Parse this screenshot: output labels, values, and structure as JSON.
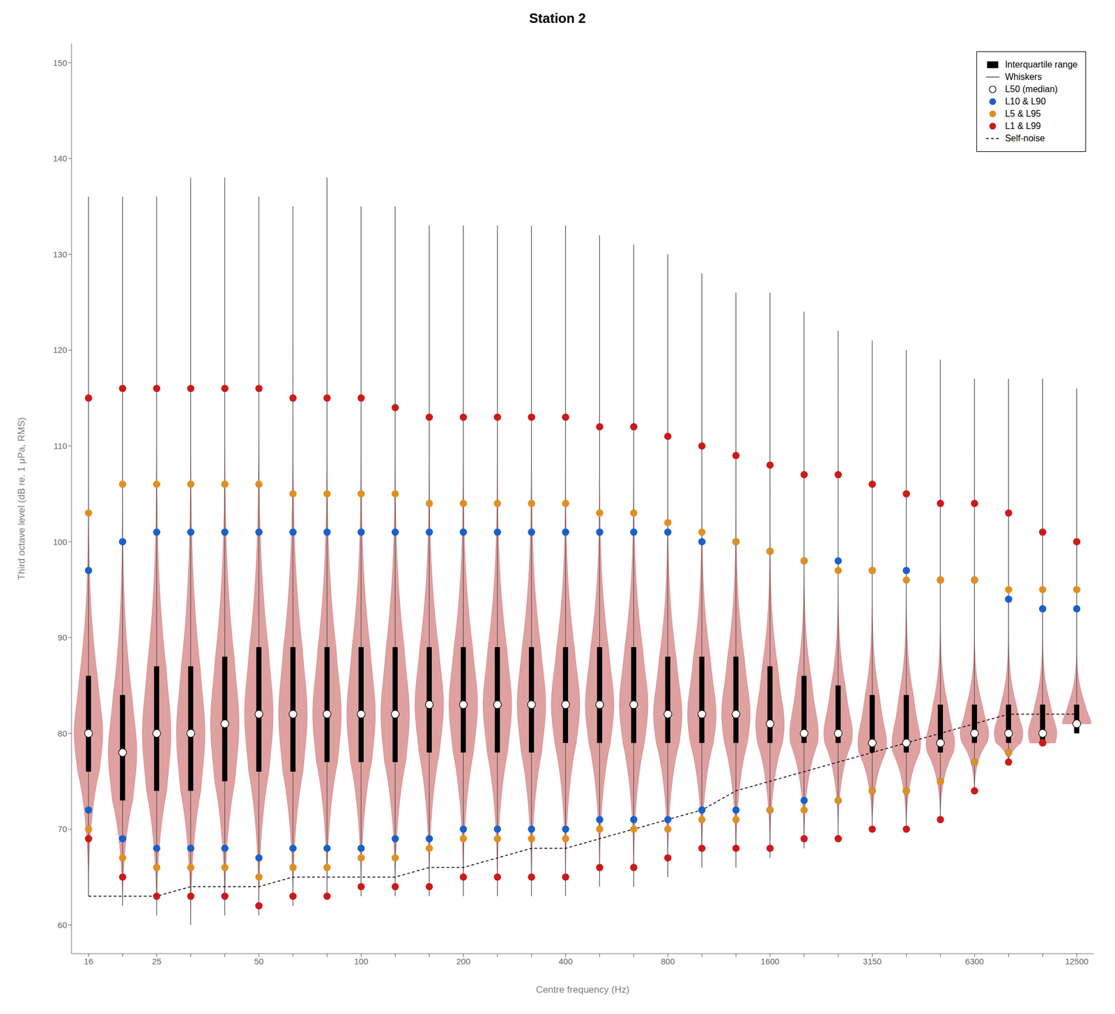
{
  "chart_data": {
    "type": "violin",
    "title": "Station 2",
    "xlabel": "Centre frequency (Hz)",
    "ylabel": "Third octave level (dB re. 1 μPa, RMS)",
    "color": "#d48080",
    "categories": [
      16,
      null,
      25,
      null,
      null,
      50,
      null,
      null,
      100,
      null,
      null,
      200,
      null,
      null,
      400,
      null,
      null,
      800,
      null,
      null,
      1600,
      null,
      null,
      3150,
      null,
      null,
      6300,
      null,
      null,
      12500
    ],
    "series": [
      {
        "name": "Interquartile range",
        "type": "box",
        "color": "#000000",
        "values": [
          [
            76,
            86
          ],
          [
            73,
            84
          ],
          [
            74,
            87
          ],
          [
            74,
            87
          ],
          [
            75,
            88
          ],
          [
            76,
            89
          ],
          [
            76,
            89
          ],
          [
            77,
            89
          ],
          [
            77,
            89
          ],
          [
            77,
            89
          ],
          [
            78,
            89
          ],
          [
            78,
            89
          ],
          [
            78,
            89
          ],
          [
            78,
            89
          ],
          [
            79,
            89
          ],
          [
            79,
            89
          ],
          [
            79,
            89
          ],
          [
            79,
            88
          ],
          [
            79,
            88
          ],
          [
            79,
            88
          ],
          [
            79,
            87
          ],
          [
            79,
            86
          ],
          [
            79,
            85
          ],
          [
            78,
            84
          ],
          [
            78,
            84
          ],
          [
            78,
            83
          ],
          [
            79,
            83
          ],
          [
            79,
            83
          ],
          [
            79,
            83
          ],
          [
            80,
            83
          ]
        ]
      },
      {
        "name": "Whiskers",
        "type": "whisker",
        "color": "#444444",
        "values": [
          [
            63,
            136
          ],
          [
            62,
            136
          ],
          [
            61,
            136
          ],
          [
            60,
            138
          ],
          [
            61,
            138
          ],
          [
            61,
            136
          ],
          [
            62,
            135
          ],
          [
            63,
            138
          ],
          [
            63,
            135
          ],
          [
            63,
            135
          ],
          [
            63,
            133
          ],
          [
            63,
            133
          ],
          [
            63,
            133
          ],
          [
            63,
            133
          ],
          [
            63,
            133
          ],
          [
            64,
            132
          ],
          [
            64,
            131
          ],
          [
            65,
            130
          ],
          [
            66,
            128
          ],
          [
            66,
            126
          ],
          [
            67,
            126
          ],
          [
            68,
            124
          ],
          [
            69,
            122
          ],
          [
            70,
            121
          ],
          [
            70,
            120
          ],
          [
            71,
            119
          ],
          [
            74,
            117
          ],
          [
            77,
            117
          ],
          [
            79,
            117
          ],
          [
            81,
            116
          ]
        ]
      },
      {
        "name": "L50 (median)",
        "type": "scatter",
        "color": "white",
        "values": [
          80,
          78,
          80,
          80,
          81,
          82,
          82,
          82,
          82,
          82,
          83,
          83,
          83,
          83,
          83,
          83,
          83,
          82,
          82,
          82,
          81,
          80,
          80,
          79,
          79,
          79,
          80,
          80,
          80,
          81
        ]
      },
      {
        "name": "L10 & L90",
        "type": "scatter",
        "color": "#1a5fcc",
        "values": [
          [
            97,
            72
          ],
          [
            100,
            69
          ],
          [
            101,
            68
          ],
          [
            101,
            68
          ],
          [
            101,
            68
          ],
          [
            101,
            67
          ],
          [
            101,
            68
          ],
          [
            101,
            68
          ],
          [
            101,
            68
          ],
          [
            101,
            69
          ],
          [
            101,
            69
          ],
          [
            101,
            70
          ],
          [
            101,
            70
          ],
          [
            101,
            70
          ],
          [
            101,
            70
          ],
          [
            101,
            71
          ],
          [
            101,
            71
          ],
          [
            101,
            71
          ],
          [
            100,
            72
          ],
          [
            100,
            72
          ],
          [
            99,
            72
          ],
          [
            98,
            73
          ],
          [
            98,
            73
          ],
          [
            97,
            74
          ],
          [
            97,
            74
          ],
          [
            96,
            75
          ],
          [
            96,
            77
          ],
          [
            94,
            78
          ],
          [
            93,
            79
          ],
          [
            93,
            81
          ]
        ]
      },
      {
        "name": "L5 & L95",
        "type": "scatter",
        "color": "#e09020",
        "values": [
          [
            103,
            70
          ],
          [
            106,
            67
          ],
          [
            106,
            66
          ],
          [
            106,
            66
          ],
          [
            106,
            66
          ],
          [
            106,
            65
          ],
          [
            105,
            66
          ],
          [
            105,
            66
          ],
          [
            105,
            67
          ],
          [
            105,
            67
          ],
          [
            104,
            68
          ],
          [
            104,
            69
          ],
          [
            104,
            69
          ],
          [
            104,
            69
          ],
          [
            104,
            69
          ],
          [
            103,
            70
          ],
          [
            103,
            70
          ],
          [
            102,
            70
          ],
          [
            101,
            71
          ],
          [
            100,
            71
          ],
          [
            99,
            72
          ],
          [
            98,
            72
          ],
          [
            97,
            73
          ],
          [
            97,
            74
          ],
          [
            96,
            74
          ],
          [
            96,
            75
          ],
          [
            96,
            77
          ],
          [
            95,
            78
          ],
          [
            95,
            79
          ],
          [
            95,
            81
          ]
        ]
      },
      {
        "name": "L1 & L99",
        "type": "scatter",
        "color": "#cc1a1a",
        "values": [
          [
            115,
            69
          ],
          [
            116,
            65
          ],
          [
            116,
            63
          ],
          [
            116,
            63
          ],
          [
            116,
            63
          ],
          [
            116,
            62
          ],
          [
            115,
            63
          ],
          [
            115,
            63
          ],
          [
            115,
            64
          ],
          [
            114,
            64
          ],
          [
            113,
            64
          ],
          [
            113,
            65
          ],
          [
            113,
            65
          ],
          [
            113,
            65
          ],
          [
            113,
            65
          ],
          [
            112,
            66
          ],
          [
            112,
            66
          ],
          [
            111,
            67
          ],
          [
            110,
            68
          ],
          [
            109,
            68
          ],
          [
            108,
            68
          ],
          [
            107,
            69
          ],
          [
            107,
            69
          ],
          [
            106,
            70
          ],
          [
            105,
            70
          ],
          [
            104,
            71
          ],
          [
            104,
            74
          ],
          [
            103,
            77
          ],
          [
            101,
            79
          ],
          [
            100,
            81
          ]
        ]
      },
      {
        "name": "Self-noise",
        "type": "line",
        "color": "black",
        "line_style": "dashed",
        "values": [
          63,
          63,
          63,
          64,
          64,
          64,
          65,
          65,
          65,
          65,
          66,
          66,
          67,
          68,
          68,
          69,
          70,
          71,
          72,
          74,
          75,
          76,
          77,
          78,
          79,
          80,
          81,
          82,
          82,
          82
        ]
      }
    ],
    "ylim": [
      57,
      152
    ],
    "yticks": [
      60,
      70,
      80,
      90,
      100,
      110,
      120,
      130,
      140,
      150
    ],
    "grid": false,
    "legend": "upper right"
  }
}
